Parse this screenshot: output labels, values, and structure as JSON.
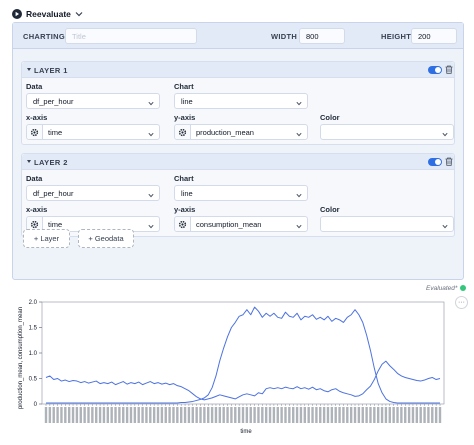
{
  "topbar": {
    "reevaluate_label": "Reevaluate"
  },
  "charting": {
    "label": "CHARTING",
    "title_placeholder": "Title",
    "title_value": "",
    "width_label": "WIDTH",
    "width_value": "800",
    "height_label": "HEIGHT",
    "height_value": "200"
  },
  "layers": [
    {
      "title": "LAYER 1",
      "enabled": true,
      "data_label": "Data",
      "data_value": "df_per_hour",
      "chart_label": "Chart",
      "chart_value": "line",
      "x_label": "x-axis",
      "x_value": "time",
      "y_label": "y-axis",
      "y_value": "production_mean",
      "color_label": "Color",
      "color_value": ""
    },
    {
      "title": "LAYER 2",
      "enabled": true,
      "data_label": "Data",
      "data_value": "df_per_hour",
      "chart_label": "Chart",
      "chart_value": "line",
      "x_label": "x-axis",
      "x_value": "time",
      "y_label": "y-axis",
      "y_value": "consumption_mean",
      "color_label": "Color",
      "color_value": ""
    }
  ],
  "buttons": {
    "add_layer": "+ Layer",
    "add_geodata": "+ Geodata"
  },
  "status": {
    "evaluated_label": "Evaluated*",
    "more_label": "···"
  },
  "colors": {
    "accent": "#2f6fe4",
    "series": "#4c72e0",
    "evaluated_dot": "#34c77b"
  },
  "chart_data": {
    "type": "line",
    "xlabel": "time",
    "ylabel": "production_mean, consumption_mean",
    "ylim": [
      0,
      2.0
    ],
    "yticks": [
      0,
      0.5,
      1.0,
      1.5,
      2.0
    ],
    "ytick_labels": [
      "0",
      "0.5",
      "1.0",
      "1.5",
      "2.0"
    ],
    "grid": false,
    "series": [
      {
        "field": "production_mean",
        "values": [
          0.02,
          0.02,
          0.02,
          0.02,
          0.02,
          0.02,
          0.02,
          0.02,
          0.02,
          0.02,
          0.02,
          0.02,
          0.02,
          0.02,
          0.02,
          0.02,
          0.02,
          0.02,
          0.02,
          0.02,
          0.02,
          0.02,
          0.02,
          0.02,
          0.02,
          0.02,
          0.02,
          0.02,
          0.02,
          0.02,
          0.02,
          0.02,
          0.02,
          0.02,
          0.02,
          0.03,
          0.03,
          0.04,
          0.05,
          0.07,
          0.09,
          0.12,
          0.18,
          0.32,
          0.55,
          0.85,
          1.1,
          1.32,
          1.5,
          1.6,
          1.72,
          1.75,
          1.85,
          1.75,
          1.9,
          1.82,
          1.7,
          1.78,
          1.72,
          1.78,
          1.7,
          1.68,
          1.8,
          1.72,
          1.7,
          1.78,
          1.65,
          1.72,
          1.7,
          1.75,
          1.66,
          1.7,
          1.65,
          1.72,
          1.62,
          1.68,
          1.65,
          1.6,
          1.7,
          1.75,
          1.85,
          1.75,
          1.6,
          1.35,
          1.05,
          0.7,
          0.4,
          0.22,
          0.1,
          0.05,
          0.03,
          0.02,
          0.02,
          0.02,
          0.02,
          0.02,
          0.02,
          0.02,
          0.02,
          0.02,
          0.02,
          0.02,
          0.02
        ]
      },
      {
        "field": "consumption_mean",
        "values": [
          0.52,
          0.55,
          0.48,
          0.5,
          0.45,
          0.47,
          0.44,
          0.46,
          0.45,
          0.42,
          0.44,
          0.41,
          0.43,
          0.45,
          0.4,
          0.42,
          0.4,
          0.43,
          0.38,
          0.41,
          0.44,
          0.39,
          0.42,
          0.4,
          0.43,
          0.38,
          0.41,
          0.44,
          0.4,
          0.42,
          0.39,
          0.41,
          0.38,
          0.4,
          0.36,
          0.34,
          0.3,
          0.26,
          0.2,
          0.14,
          0.1,
          0.08,
          0.1,
          0.12,
          0.15,
          0.18,
          0.16,
          0.14,
          0.12,
          0.1,
          0.14,
          0.18,
          0.2,
          0.18,
          0.16,
          0.22,
          0.2,
          0.3,
          0.32,
          0.3,
          0.32,
          0.3,
          0.33,
          0.31,
          0.3,
          0.34,
          0.3,
          0.32,
          0.29,
          0.33,
          0.28,
          0.3,
          0.26,
          0.24,
          0.28,
          0.3,
          0.25,
          0.22,
          0.2,
          0.18,
          0.15,
          0.16,
          0.2,
          0.28,
          0.35,
          0.48,
          0.65,
          0.78,
          0.84,
          0.75,
          0.68,
          0.6,
          0.55,
          0.52,
          0.5,
          0.48,
          0.46,
          0.45,
          0.47,
          0.5,
          0.52,
          0.48,
          0.5
        ]
      }
    ]
  }
}
